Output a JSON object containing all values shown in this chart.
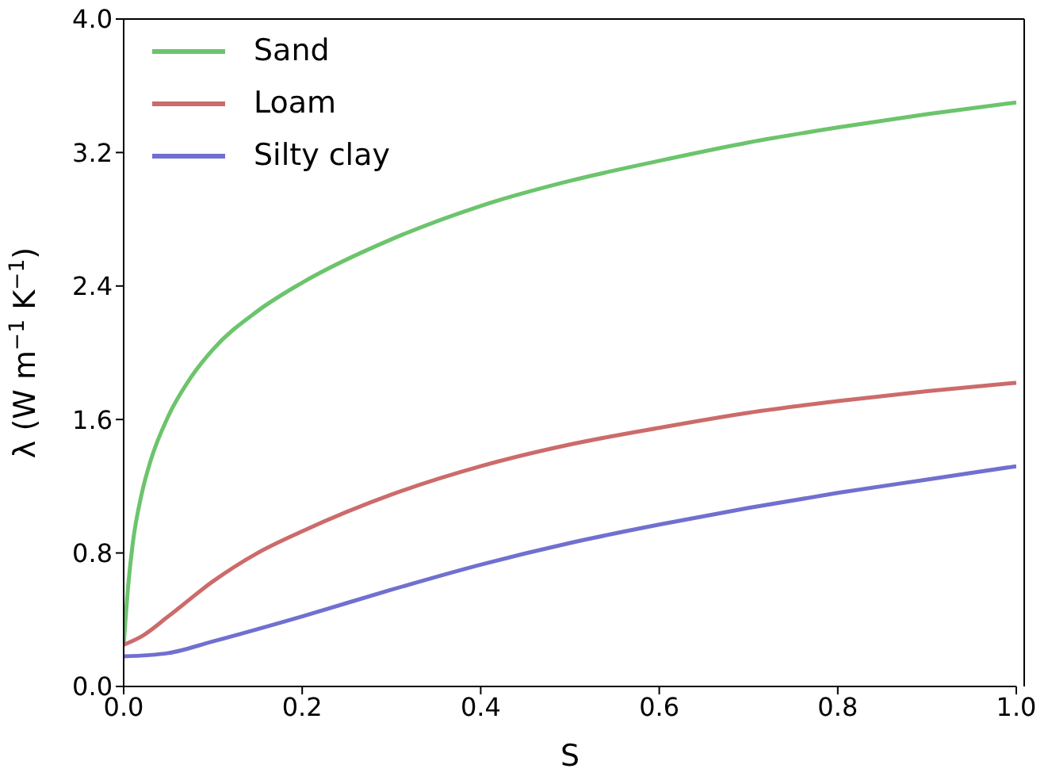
{
  "chart_data": {
    "type": "line",
    "xlabel": "S",
    "ylabel": "λ (W m$^{−1}$ K$^{−1}$)",
    "xlim": [
      0,
      1
    ],
    "ylim": [
      0,
      4
    ],
    "xticks": [
      {
        "value": 0,
        "label": "0.0"
      },
      {
        "value": 0.2,
        "label": "0.2"
      },
      {
        "value": 0.4,
        "label": "0.4"
      },
      {
        "value": 0.6,
        "label": "0.6"
      },
      {
        "value": 0.8,
        "label": "0.8"
      },
      {
        "value": 1,
        "label": "1.0"
      }
    ],
    "yticks": [
      {
        "value": 0,
        "label": "0.0"
      },
      {
        "value": 0.8,
        "label": "0.8"
      },
      {
        "value": 1.6,
        "label": "1.6"
      },
      {
        "value": 2.4,
        "label": "2.4"
      },
      {
        "value": 3.2,
        "label": "3.2"
      },
      {
        "value": 4,
        "label": "4.0"
      }
    ],
    "grid": false,
    "legend": "top left",
    "marker": "none",
    "line_style": "solid",
    "series": [
      {
        "name": "Sand",
        "color": "#6cc46c",
        "x": [
          0,
          0.005,
          0.01,
          0.02,
          0.03,
          0.05,
          0.075,
          0.1,
          0.15,
          0.2,
          0.3,
          0.4,
          0.5,
          0.6,
          0.7,
          0.8,
          0.9,
          1.0
        ],
        "values": [
          0.25,
          0.6,
          0.85,
          1.15,
          1.35,
          1.62,
          1.85,
          2.02,
          2.25,
          2.42,
          2.68,
          2.88,
          3.03,
          3.15,
          3.26,
          3.35,
          3.43,
          3.5
        ]
      },
      {
        "name": "Loam",
        "color": "#cc6b6b",
        "x": [
          0,
          0.02,
          0.05,
          0.1,
          0.15,
          0.2,
          0.3,
          0.4,
          0.5,
          0.6,
          0.7,
          0.8,
          0.9,
          1.0
        ],
        "values": [
          0.25,
          0.3,
          0.42,
          0.63,
          0.8,
          0.93,
          1.15,
          1.32,
          1.45,
          1.55,
          1.64,
          1.71,
          1.77,
          1.82
        ]
      },
      {
        "name": "Silty clay",
        "color": "#7070d0",
        "x": [
          0,
          0.05,
          0.1,
          0.2,
          0.3,
          0.4,
          0.5,
          0.6,
          0.7,
          0.8,
          0.9,
          1.0
        ],
        "values": [
          0.18,
          0.2,
          0.27,
          0.42,
          0.58,
          0.73,
          0.86,
          0.97,
          1.07,
          1.16,
          1.24,
          1.32
        ]
      }
    ]
  }
}
